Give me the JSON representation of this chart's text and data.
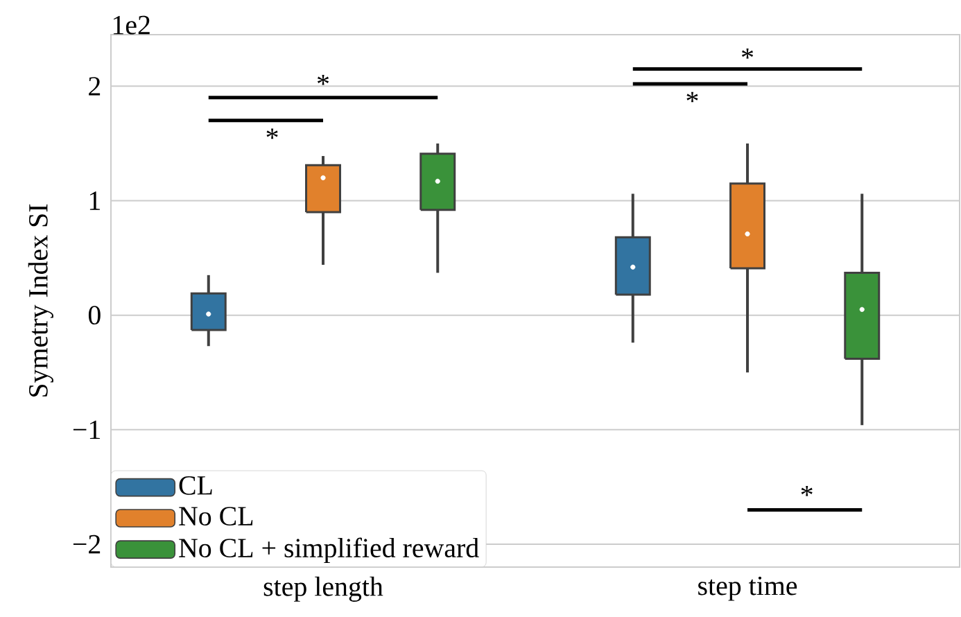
{
  "chart_data": {
    "type": "box",
    "ylabel": "Symetry Index SI",
    "annotations": [
      "1e2",
      "*",
      "*",
      "*",
      "*",
      "*"
    ],
    "categories": [
      "step length",
      "step time"
    ],
    "series": [
      {
        "name": "CL",
        "color": "#3274a1",
        "boxes": [
          {
            "low": -0.27,
            "q1": -0.13,
            "median": 0.01,
            "q3": 0.19,
            "high": 0.35
          },
          {
            "low": -0.24,
            "q1": 0.18,
            "median": 0.42,
            "q3": 0.68,
            "high": 1.06
          }
        ]
      },
      {
        "name": "No CL",
        "color": "#e1812c",
        "boxes": [
          {
            "low": 0.44,
            "q1": 0.9,
            "median": 1.2,
            "q3": 1.31,
            "high": 1.39
          },
          {
            "low": -0.5,
            "q1": 0.41,
            "median": 0.71,
            "q3": 1.15,
            "high": 1.5
          }
        ]
      },
      {
        "name": "No CL + simplified reward",
        "color": "#3a923a",
        "boxes": [
          {
            "low": 0.37,
            "q1": 0.92,
            "median": 1.17,
            "q3": 1.41,
            "high": 1.5
          },
          {
            "low": -0.96,
            "q1": -0.38,
            "median": 0.05,
            "q3": 0.37,
            "high": 1.06
          }
        ]
      }
    ],
    "ylim": [
      -2.2,
      2.45
    ],
    "yticks": [
      {
        "value": -2,
        "label": "−2"
      },
      {
        "value": -1,
        "label": "−1"
      },
      0,
      1,
      2
    ],
    "grid": "y",
    "legend": "bottom left"
  }
}
